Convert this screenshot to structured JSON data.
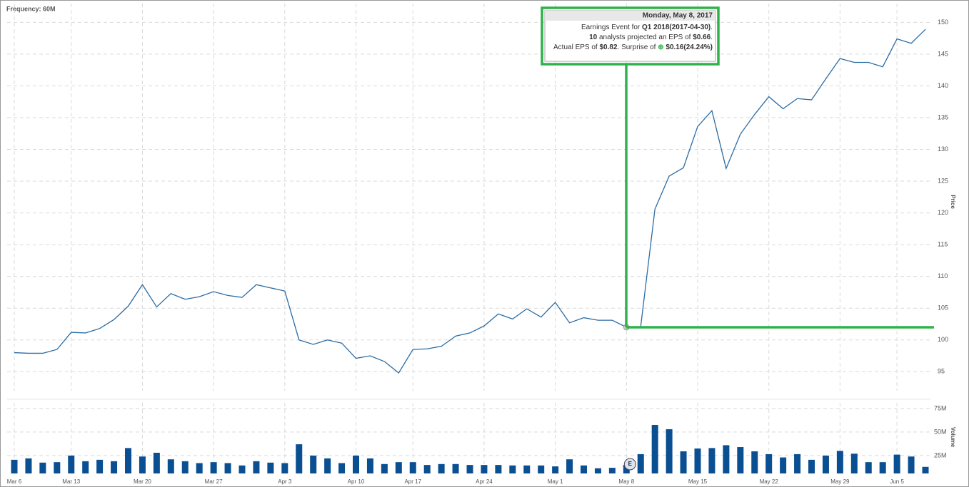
{
  "chart_data": {
    "type": "line",
    "frequency_label": "Frequency: 60M",
    "y_label": "Price",
    "y2_label": "Volume",
    "categories": [
      "Mar 6",
      null,
      null,
      null,
      "Mar 13",
      null,
      null,
      null,
      null,
      "Mar 20",
      null,
      null,
      null,
      null,
      "Mar 27",
      null,
      null,
      null,
      null,
      "Apr 3",
      null,
      null,
      null,
      null,
      "Apr 10",
      null,
      null,
      null,
      "Apr 17",
      null,
      null,
      null,
      null,
      "Apr 24",
      null,
      null,
      null,
      null,
      "May 1",
      null,
      null,
      null,
      null,
      "May 8",
      null,
      null,
      null,
      null,
      "May 15",
      null,
      null,
      null,
      null,
      "May 22",
      null,
      null,
      null,
      null,
      "May 29",
      null,
      null,
      null,
      "Jun 5",
      null,
      null
    ],
    "ylim": [
      92,
      152.4
    ],
    "yticks": [
      95,
      100,
      105,
      110,
      115,
      120,
      125,
      130,
      135,
      140,
      145,
      150
    ],
    "y2lim": [
      6,
      81
    ],
    "y2ticks": [
      {
        "value": 25,
        "label": "25M"
      },
      {
        "value": 50,
        "label": "50M"
      },
      {
        "value": 75,
        "label": "75M"
      }
    ],
    "grid": true,
    "series": [
      {
        "type": "line",
        "color": "#2b6ca3",
        "values": [
          98.0,
          97.9,
          97.9,
          98.5,
          101.2,
          101.1,
          101.8,
          103.2,
          105.3,
          108.7,
          105.2,
          107.3,
          106.4,
          106.8,
          107.6,
          107.0,
          106.7,
          108.7,
          108.2,
          107.7,
          100.0,
          99.3,
          100.0,
          99.5,
          97.1,
          97.5,
          96.6,
          94.8,
          98.5,
          98.6,
          99.0,
          100.6,
          101.1,
          102.2,
          104.1,
          103.3,
          104.9,
          103.6,
          105.9,
          102.7,
          103.5,
          103.1,
          103.1,
          102.0,
          102.1,
          120.6,
          125.8,
          127.1,
          133.6,
          136.1,
          127.0,
          132.4,
          135.5,
          138.3,
          136.4,
          138.0,
          137.8,
          141.1,
          144.3,
          143.7,
          143.7,
          143.0,
          147.4,
          146.7,
          148.9
        ]
      },
      {
        "type": "bar",
        "axis": "y2",
        "color": "#0a4f92",
        "values": [
          20.5,
          22,
          17.5,
          18,
          25,
          19,
          20.5,
          19,
          33,
          24,
          28,
          21,
          19,
          17,
          18,
          17,
          14.5,
          19,
          17.5,
          17,
          37,
          25,
          22,
          17,
          25,
          22,
          16,
          18,
          18,
          15,
          16,
          16,
          15,
          15,
          15,
          14.5,
          14.5,
          14.5,
          13.5,
          21,
          14.5,
          11.5,
          12,
          15,
          26.5,
          57.5,
          53,
          29.5,
          32.5,
          33,
          36,
          34,
          29.5,
          26.5,
          23,
          26.5,
          20.5,
          25,
          30,
          27,
          18,
          18,
          26,
          24,
          13
        ]
      }
    ],
    "event_marker": "E",
    "tooltip": {
      "title": "Monday, May 8, 2017",
      "lines": [
        [
          {
            "text": "Earnings Event for "
          },
          {
            "text": "Q1 2018(2017-04-30)",
            "bold": true
          },
          {
            "text": "."
          }
        ],
        [
          {
            "text": "10",
            "bold": true
          },
          {
            "text": " analysts projected an EPS of "
          },
          {
            "text": "$0.66",
            "bold": true
          },
          {
            "text": "."
          }
        ],
        [
          {
            "text": "Actual EPS of "
          },
          {
            "text": "$0.82",
            "bold": true
          },
          {
            "text": ". Surprise of "
          },
          {
            "text": "$0.16(24.24%)",
            "bold": true
          }
        ]
      ]
    }
  }
}
